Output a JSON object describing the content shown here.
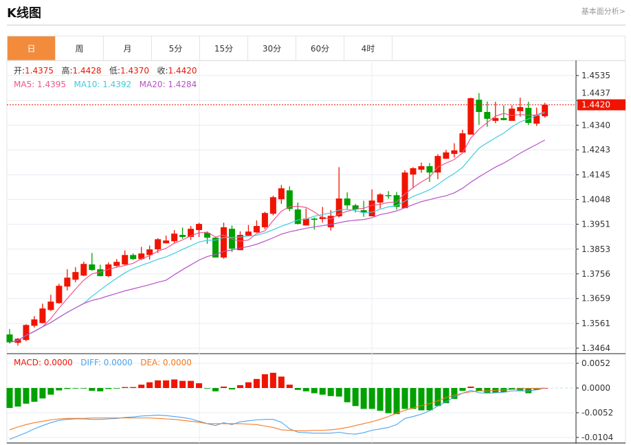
{
  "header": {
    "title": "K线图",
    "fundamental_link": "基本面分析>"
  },
  "tabs": [
    {
      "label": "日",
      "active": true
    },
    {
      "label": "周"
    },
    {
      "label": "月"
    },
    {
      "label": "5分"
    },
    {
      "label": "15分"
    },
    {
      "label": "30分"
    },
    {
      "label": "60分"
    },
    {
      "label": "4时"
    }
  ],
  "legend": {
    "open_label": "开:",
    "open": "1.4375",
    "high_label": "高:",
    "high": "1.4428",
    "low_label": "低:",
    "low": "1.4370",
    "close_label": "收:",
    "close": "1.4420",
    "ma5_label": "MA5: 1.4395",
    "ma10_label": "MA10: 1.4392",
    "ma20_label": "MA20: 1.4284"
  },
  "macd_legend": {
    "macd": "MACD: 0.0000",
    "diff": "DIFF: 0.0000",
    "dea": "DEA: 0.0000"
  },
  "current_price": "1.4420",
  "colors": {
    "up": "#f01400",
    "down": "#00a000",
    "ma5": "#f0538a",
    "ma10": "#3ccbe0",
    "ma20": "#b650c8",
    "diff": "#4aa3f0",
    "dea": "#f57820",
    "accent": "#f38b3c"
  },
  "chart_data": {
    "type": "candlestick",
    "price_ticks": [
      "1.4535",
      "1.4437",
      "1.4340",
      "1.4243",
      "1.4145",
      "1.4048",
      "1.3951",
      "1.3853",
      "1.3756",
      "1.3659",
      "1.3561",
      "1.3464"
    ],
    "price_range": [
      1.3464,
      1.4535
    ],
    "macd_ticks": [
      "0.0052",
      "0.0000",
      "-0.0052",
      "-0.0104"
    ],
    "macd_range": [
      -0.0104,
      0.0052
    ],
    "ohlc": [
      [
        1.3518,
        1.3539,
        1.3482,
        1.3487
      ],
      [
        1.3485,
        1.3504,
        1.3474,
        1.3501
      ],
      [
        1.3496,
        1.3558,
        1.3491,
        1.3555
      ],
      [
        1.3552,
        1.359,
        1.3545,
        1.3577
      ],
      [
        1.3563,
        1.3639,
        1.3561,
        1.362
      ],
      [
        1.3614,
        1.3674,
        1.361,
        1.3647
      ],
      [
        1.3641,
        1.3717,
        1.3639,
        1.3709
      ],
      [
        1.3706,
        1.3774,
        1.3691,
        1.3741
      ],
      [
        1.3733,
        1.3782,
        1.3723,
        1.3763
      ],
      [
        1.3749,
        1.3804,
        1.3747,
        1.3795
      ],
      [
        1.3793,
        1.3838,
        1.3768,
        1.3771
      ],
      [
        1.3774,
        1.3792,
        1.3746,
        1.3747
      ],
      [
        1.3747,
        1.3801,
        1.3743,
        1.3793
      ],
      [
        1.3787,
        1.3814,
        1.3784,
        1.3803
      ],
      [
        1.3793,
        1.3848,
        1.379,
        1.383
      ],
      [
        1.383,
        1.3836,
        1.3811,
        1.3814
      ],
      [
        1.3814,
        1.3862,
        1.381,
        1.3836
      ],
      [
        1.383,
        1.3867,
        1.3812,
        1.3852
      ],
      [
        1.3852,
        1.3896,
        1.3838,
        1.3892
      ],
      [
        1.3876,
        1.3906,
        1.3876,
        1.3887
      ],
      [
        1.3884,
        1.3928,
        1.3876,
        1.3914
      ],
      [
        1.3909,
        1.3938,
        1.3894,
        1.3901
      ],
      [
        1.3901,
        1.3944,
        1.3889,
        1.3933
      ],
      [
        1.3928,
        1.3957,
        1.3901,
        1.3952
      ],
      [
        1.3917,
        1.3923,
        1.3874,
        1.3898
      ],
      [
        1.3898,
        1.3902,
        1.382,
        1.382
      ],
      [
        1.382,
        1.3957,
        1.3815,
        1.3939
      ],
      [
        1.3933,
        1.3946,
        1.3842,
        1.3855
      ],
      [
        1.3849,
        1.3923,
        1.3849,
        1.3909
      ],
      [
        1.3906,
        1.3948,
        1.3906,
        1.3922
      ],
      [
        1.3919,
        1.3966,
        1.3917,
        1.3944
      ],
      [
        1.3939,
        1.4,
        1.3932,
        1.3995
      ],
      [
        1.3992,
        1.4063,
        1.3986,
        1.4057
      ],
      [
        1.4049,
        1.4105,
        1.4031,
        1.4092
      ],
      [
        1.4084,
        1.41,
        1.4002,
        1.4011
      ],
      [
        1.4009,
        1.4036,
        1.395,
        1.3952
      ],
      [
        1.3946,
        1.4013,
        1.3946,
        1.3973
      ],
      [
        1.3973,
        1.3977,
        1.393,
        1.3968
      ],
      [
        1.3971,
        1.4019,
        1.3957,
        1.3979
      ],
      [
        1.3939,
        1.4006,
        1.3926,
        1.3984
      ],
      [
        1.3982,
        1.4175,
        1.3977,
        1.4052
      ],
      [
        1.4052,
        1.4076,
        1.4008,
        1.4025
      ],
      [
        1.4025,
        1.4031,
        1.3997,
        1.4009
      ],
      [
        1.4006,
        1.4043,
        1.398,
        1.3998
      ],
      [
        1.3982,
        1.4088,
        1.3982,
        1.4044
      ],
      [
        1.4036,
        1.4073,
        1.4013,
        1.4068
      ],
      [
        1.4065,
        1.4081,
        1.4051,
        1.4063
      ],
      [
        1.4065,
        1.4078,
        1.4008,
        1.4019
      ],
      [
        1.4014,
        1.4163,
        1.4014,
        1.4154
      ],
      [
        1.4146,
        1.4175,
        1.4092,
        1.4171
      ],
      [
        1.4165,
        1.4193,
        1.4153,
        1.4179
      ],
      [
        1.4179,
        1.4191,
        1.4117,
        1.4154
      ],
      [
        1.4154,
        1.4226,
        1.4128,
        1.4219
      ],
      [
        1.4208,
        1.4243,
        1.4208,
        1.4233
      ],
      [
        1.4227,
        1.4269,
        1.4213,
        1.4241
      ],
      [
        1.4233,
        1.4322,
        1.4233,
        1.4308
      ],
      [
        1.4303,
        1.4448,
        1.4303,
        1.4446
      ],
      [
        1.444,
        1.4466,
        1.4341,
        1.4392
      ],
      [
        1.4392,
        1.4433,
        1.4334,
        1.4365
      ],
      [
        1.4357,
        1.4432,
        1.4348,
        1.4368
      ],
      [
        1.4368,
        1.4418,
        1.4359,
        1.436
      ],
      [
        1.4357,
        1.4418,
        1.4357,
        1.4405
      ],
      [
        1.4395,
        1.4448,
        1.4373,
        1.4411
      ],
      [
        1.4408,
        1.4432,
        1.4341,
        1.4349
      ],
      [
        1.4346,
        1.4409,
        1.4337,
        1.4378
      ],
      [
        1.4375,
        1.4428,
        1.437,
        1.442
      ]
    ],
    "macd_hist": [
      -0.0042,
      -0.0039,
      -0.0033,
      -0.0029,
      -0.0022,
      -0.0014,
      -0.0005,
      -0.0002,
      -0.0001,
      -0.0001,
      -0.0006,
      -0.0007,
      -0.0002,
      -5e-05,
      0.0002,
      0.0002,
      0.0007,
      0.0012,
      0.0016,
      0.0016,
      0.0018,
      0.0015,
      0.0015,
      0.001,
      -0.0001,
      -0.0007,
      0.0003,
      -0.0003,
      0.0006,
      0.0012,
      0.0019,
      0.0029,
      0.0032,
      0.0024,
      0.0007,
      -0.0004,
      -0.0007,
      -0.0011,
      -0.0014,
      -0.0017,
      -0.0018,
      -0.003,
      -0.0038,
      -0.0044,
      -0.0044,
      -0.0048,
      -0.0053,
      -0.0055,
      -0.0044,
      -0.0044,
      -0.0047,
      -0.0047,
      -0.0038,
      -0.0032,
      -0.0023,
      -0.0006,
      0.0003,
      -0.0006,
      -0.001,
      -0.001,
      -0.0009,
      -0.0003,
      -0.0005,
      -0.0011,
      -0.0004,
      0
    ],
    "diff": [
      -0.0108,
      -0.0101,
      -0.0094,
      -0.0086,
      -0.0079,
      -0.0073,
      -0.0068,
      -0.0066,
      -0.0065,
      -0.0065,
      -0.0066,
      -0.0066,
      -0.0065,
      -0.0064,
      -0.0062,
      -0.0061,
      -0.0059,
      -0.0058,
      -0.0057,
      -0.0058,
      -0.006,
      -0.0062,
      -0.0065,
      -0.007,
      -0.0075,
      -0.0079,
      -0.0073,
      -0.0077,
      -0.0071,
      -0.0069,
      -0.0067,
      -0.0066,
      -0.0066,
      -0.0072,
      -0.0086,
      -0.0093,
      -0.0094,
      -0.0095,
      -0.0095,
      -0.0095,
      -0.0093,
      -0.0096,
      -0.0097,
      -0.0094,
      -0.0089,
      -0.0086,
      -0.0083,
      -0.0077,
      -0.0064,
      -0.006,
      -0.0055,
      -0.0048,
      -0.0038,
      -0.0029,
      -0.0019,
      -0.0011,
      -0.0005,
      -0.001,
      -0.0011,
      -0.001,
      -0.0009,
      -0.0006,
      -0.0006,
      -0.0006,
      -0.0004,
      0
    ],
    "dea": [
      -0.0088,
      -0.0082,
      -0.0077,
      -0.0073,
      -0.007,
      -0.0067,
      -0.0065,
      -0.0064,
      -0.0064,
      -0.0064,
      -0.0063,
      -0.0063,
      -0.0063,
      -0.0063,
      -0.0063,
      -0.0063,
      -0.0063,
      -0.0063,
      -0.0064,
      -0.0065,
      -0.0066,
      -0.0068,
      -0.007,
      -0.0072,
      -0.0075,
      -0.0075,
      -0.0075,
      -0.0075,
      -0.0075,
      -0.0076,
      -0.0077,
      -0.008,
      -0.0083,
      -0.0088,
      -0.0089,
      -0.009,
      -0.009,
      -0.0089,
      -0.0089,
      -0.0088,
      -0.0086,
      -0.0083,
      -0.0079,
      -0.0075,
      -0.0071,
      -0.0066,
      -0.006,
      -0.0053,
      -0.0047,
      -0.0042,
      -0.0037,
      -0.0033,
      -0.0027,
      -0.002,
      -0.0015,
      -0.0011,
      -0.0008,
      -0.0006,
      -0.0006,
      -0.0005,
      -0.0004,
      -0.0003,
      -0.0002,
      -0.0001,
      -0.0001,
      0
    ]
  }
}
